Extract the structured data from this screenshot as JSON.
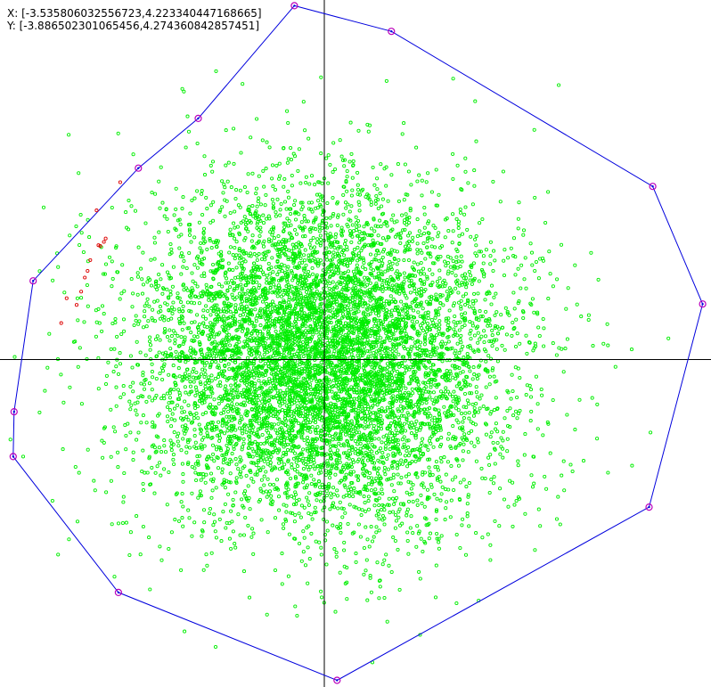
{
  "readout": {
    "x_line": "X: [-3.535806032556723,4.223340447168665]",
    "y_line": "Y: [-3.886502301065456,4.274360842857451]"
  },
  "colors": {
    "background": "#ffffff",
    "axes": "#000000",
    "points": "#00ee00",
    "outliers": "#dd0000",
    "hull_line": "#0000dd",
    "hull_vertex": "#bb00bb"
  },
  "chart_data": {
    "type": "scatter",
    "title": "",
    "xlabel": "",
    "ylabel": "",
    "xlim": [
      -3.535806032556723,
      4.223340447168665
    ],
    "ylim": [
      -3.886502301065456,
      4.274360842857451
    ],
    "grid": false,
    "legend": "none",
    "point_cloud": {
      "distribution": "approximately standard normal, about 8000 points",
      "mean": [
        0.0,
        0.0
      ],
      "std": [
        1.0,
        1.0
      ],
      "count": 8000
    },
    "hull_vertices": [
      [
        -0.33,
        4.27
      ],
      [
        0.74,
        3.96
      ],
      [
        3.62,
        2.09
      ],
      [
        4.17,
        0.67
      ],
      [
        3.58,
        -1.78
      ],
      [
        0.14,
        -3.87
      ],
      [
        -2.27,
        -2.81
      ],
      [
        -3.43,
        -1.17
      ],
      [
        -3.42,
        -0.63
      ],
      [
        -3.21,
        0.95
      ],
      [
        -2.05,
        2.31
      ],
      [
        -1.39,
        2.91
      ]
    ],
    "outlier_points": [
      [
        -2.25,
        2.14
      ],
      [
        -2.51,
        1.8
      ],
      [
        -2.41,
        1.46
      ],
      [
        -2.43,
        1.42
      ],
      [
        -2.47,
        1.37
      ],
      [
        -2.49,
        1.38
      ],
      [
        -2.58,
        1.2
      ],
      [
        -2.61,
        1.07
      ],
      [
        -2.64,
        0.99
      ],
      [
        -2.68,
        0.82
      ],
      [
        -2.73,
        0.66
      ],
      [
        -2.84,
        0.74
      ],
      [
        -2.9,
        0.44
      ]
    ]
  }
}
